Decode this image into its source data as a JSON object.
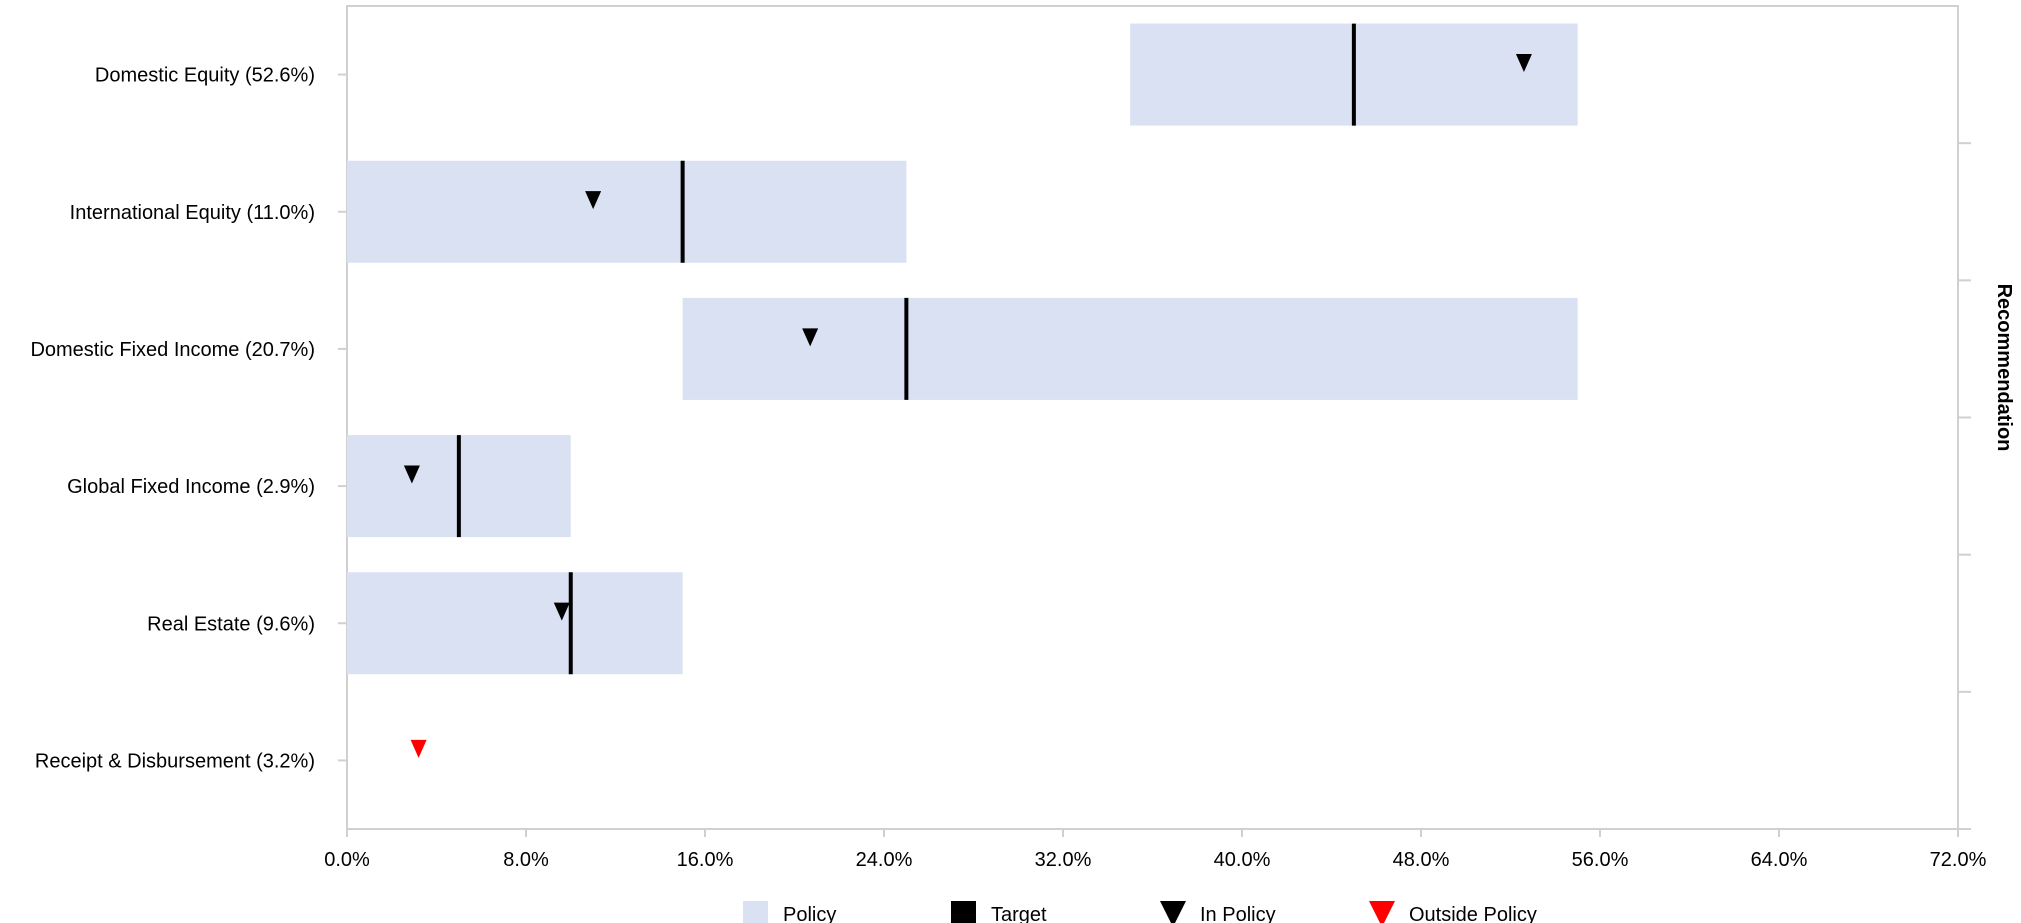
{
  "chart_data": {
    "type": "bar",
    "orientation": "horizontal",
    "categories": [
      "Domestic Equity (52.6%)",
      "International Equity (11.0%)",
      "Domestic Fixed Income (20.7%)",
      "Global Fixed Income (2.9%)",
      "Real Estate (9.6%)",
      "Receipt & Disbursement (3.2%)"
    ],
    "series": [
      {
        "name": "Policy",
        "kind": "range",
        "color": "#d9e1f2",
        "values": [
          [
            35,
            55
          ],
          [
            0,
            25
          ],
          [
            15,
            55
          ],
          [
            0,
            10
          ],
          [
            0,
            15
          ],
          null
        ]
      },
      {
        "name": "Target",
        "kind": "marker-line",
        "color": "#000000",
        "values": [
          45,
          15,
          25,
          5,
          10,
          null
        ]
      },
      {
        "name": "In Policy",
        "kind": "marker-triangle",
        "color": "#000000",
        "values": [
          52.6,
          11.0,
          20.7,
          2.9,
          9.6,
          null
        ]
      },
      {
        "name": "Outside Policy",
        "kind": "marker-triangle",
        "color": "#ff0000",
        "values": [
          null,
          null,
          null,
          null,
          null,
          3.2
        ]
      }
    ],
    "x_ticks": [
      "0.0%",
      "8.0%",
      "16.0%",
      "24.0%",
      "32.0%",
      "40.0%",
      "48.0%",
      "56.0%",
      "64.0%",
      "72.0%"
    ],
    "xlim": [
      0,
      72
    ],
    "xlabel": "",
    "y2label": "Recommendation",
    "legend_position": "bottom",
    "grid": false
  }
}
